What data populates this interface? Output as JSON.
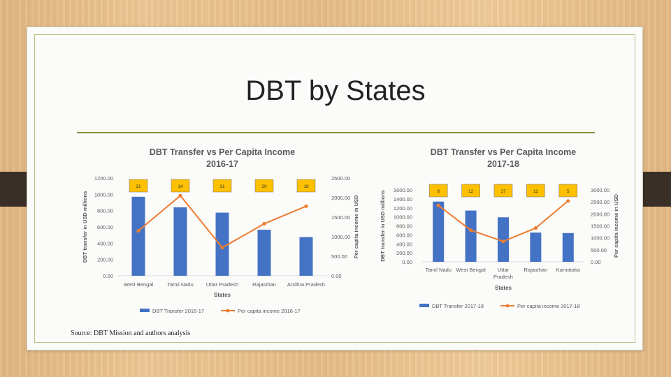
{
  "slide": {
    "title": "DBT by States",
    "source": "Source: DBT Mission and authors analysis"
  },
  "colors": {
    "bar": "#4472C4",
    "line": "#ED7D31",
    "badge": "#FFC000",
    "rule": "#7D9438"
  },
  "chart_data": [
    {
      "type": "bar",
      "title": [
        "DBT Transfer vs Per Capita Income",
        "2016-17"
      ],
      "xlabel": "States",
      "ylabel": "DBT transfer in USD millions",
      "y2label": "Per capita income in USD",
      "categories": [
        "West Bengal",
        "Tamil Nadu",
        "Uttar Pradesh",
        "Rajasthan",
        "Andhra Pradesh"
      ],
      "ylim": [
        0,
        1200
      ],
      "yticks": [
        "0.00",
        "200.00",
        "400.00",
        "600.00",
        "800.00",
        "1000.00",
        "1200.00"
      ],
      "y2lim": [
        0,
        2500
      ],
      "y2ticks": [
        "0.00",
        "500.00",
        "1000.00",
        "1500.00",
        "2000.00",
        "2500.00"
      ],
      "badges": [
        "21",
        "14",
        "31",
        "20",
        "18"
      ],
      "series": [
        {
          "name": "DBT Transfer 2016-17",
          "type": "bar",
          "axis": "left",
          "values": [
            970,
            840,
            775,
            565,
            475
          ]
        },
        {
          "name": "Per capita income 2016-17",
          "type": "line",
          "axis": "right",
          "values": [
            1150,
            2050,
            720,
            1330,
            1780
          ]
        }
      ],
      "legend": "bottom",
      "grid": false
    },
    {
      "type": "bar",
      "title": [
        "DBT Transfer vs Per Capita Income",
        "2017-18"
      ],
      "xlabel": "States",
      "ylabel": "DBT transfer in USD millions",
      "y2label": "Per capita income in USD",
      "categories": [
        "Tamil Nadu",
        "West Bengal",
        "Uttar Pradesh",
        "Rajasthan",
        "Karnataka"
      ],
      "ylim": [
        0,
        1600
      ],
      "yticks": [
        "0.00",
        "200.00",
        "400.00",
        "600.00",
        "800.00",
        "1000.00",
        "1200.00",
        "1400.00",
        "1600.00"
      ],
      "y2lim": [
        0,
        3000
      ],
      "y2ticks": [
        "0.00",
        "500.00",
        "1000.00",
        "1500.00",
        "2000.00",
        "2500.00",
        "3000.00"
      ],
      "badges": [
        "8",
        "12",
        "17",
        "11",
        "5"
      ],
      "series": [
        {
          "name": "DBT Transfer 2017-18",
          "type": "bar",
          "axis": "left",
          "values": [
            1340,
            1140,
            990,
            650,
            640
          ]
        },
        {
          "name": "Per capita income 2017-18",
          "type": "line",
          "axis": "right",
          "values": [
            2350,
            1320,
            850,
            1410,
            2540
          ]
        }
      ],
      "legend": "bottom",
      "grid": false
    }
  ]
}
